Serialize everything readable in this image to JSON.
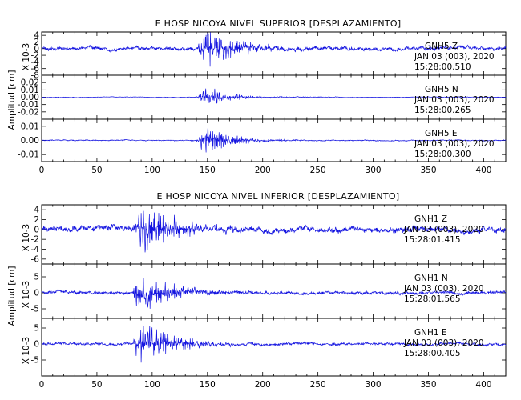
{
  "chart_data": [
    {
      "type": "line",
      "title": "E HOSP NICOYA NIVEL SUPERIOR [DESPLAZAMIENTO]",
      "ylabel": "Amplitud [cm]",
      "xlim": [
        0,
        420
      ],
      "xticks": [
        "0",
        "50",
        "100",
        "150",
        "200",
        "250",
        "300",
        "350",
        "400"
      ],
      "panels": [
        {
          "station": "GNH5",
          "component": "Z",
          "date": "JAN 03 (003), 2020",
          "time": "15:28:00.510",
          "scale_label": "X 10-3",
          "ylim": [
            -8,
            5
          ],
          "yticks": [
            "4",
            "2",
            "0",
            "-2",
            "-4",
            "-6",
            "-8"
          ],
          "noise_amplitude": 0.8,
          "peak_amplitude": 7,
          "arrival_time": 140,
          "peak_time": 150,
          "decay_time": 28
        },
        {
          "station": "GNH5",
          "component": "N",
          "date": "JAN 03 (003), 2020",
          "time": "15:28:00.265",
          "scale_label": "",
          "ylim": [
            -0.03,
            0.03
          ],
          "yticks": [
            "0.02",
            "0.01",
            "0.00",
            "-0.01",
            "-0.02"
          ],
          "noise_amplitude": 0.0006,
          "peak_amplitude": 0.016,
          "arrival_time": 140,
          "peak_time": 149,
          "decay_time": 22
        },
        {
          "station": "GNH5",
          "component": "E",
          "date": "JAN 03 (003), 2020",
          "time": "15:28:00.300",
          "scale_label": "",
          "ylim": [
            -0.015,
            0.015
          ],
          "yticks": [
            "0.01",
            "0.00",
            "-0.01"
          ],
          "noise_amplitude": 0.0005,
          "peak_amplitude": 0.014,
          "arrival_time": 140,
          "peak_time": 149,
          "decay_time": 22
        }
      ]
    },
    {
      "type": "line",
      "title": "E HOSP NICOYA NIVEL INFERIOR [DESPLAZAMIENTO]",
      "ylabel": "Amplitud [cm]",
      "xlim": [
        0,
        420
      ],
      "xticks": [
        "0",
        "50",
        "100",
        "150",
        "200",
        "250",
        "300",
        "350",
        "400"
      ],
      "panels": [
        {
          "station": "GNH1",
          "component": "Z",
          "date": "JAN 03 (003), 2020",
          "time": "15:28:01.415",
          "scale_label": "X 10-3",
          "ylim": [
            -7,
            5
          ],
          "yticks": [
            "4",
            "2",
            "0",
            "-2",
            "-4",
            "-6"
          ],
          "noise_amplitude": 0.9,
          "peak_amplitude": 5.5,
          "arrival_time": 82,
          "peak_time": 90,
          "decay_time": 35
        },
        {
          "station": "GNH1",
          "component": "N",
          "date": "JAN 03 (003), 2020",
          "time": "15:28:01.565",
          "scale_label": "X 10-3",
          "ylim": [
            -8,
            9
          ],
          "yticks": [
            "5",
            "0",
            "-5"
          ],
          "noise_amplitude": 0.7,
          "peak_amplitude": 8,
          "arrival_time": 82,
          "peak_time": 89,
          "decay_time": 30
        },
        {
          "station": "GNH1",
          "component": "E",
          "date": "JAN 03 (003), 2020",
          "time": "15:28:00.405",
          "scale_label": "X 10-3",
          "ylim": [
            -10,
            8
          ],
          "yticks": [
            "5",
            "0",
            "-5"
          ],
          "noise_amplitude": 0.6,
          "peak_amplitude": 8.5,
          "arrival_time": 82,
          "peak_time": 90,
          "decay_time": 30
        }
      ]
    }
  ]
}
